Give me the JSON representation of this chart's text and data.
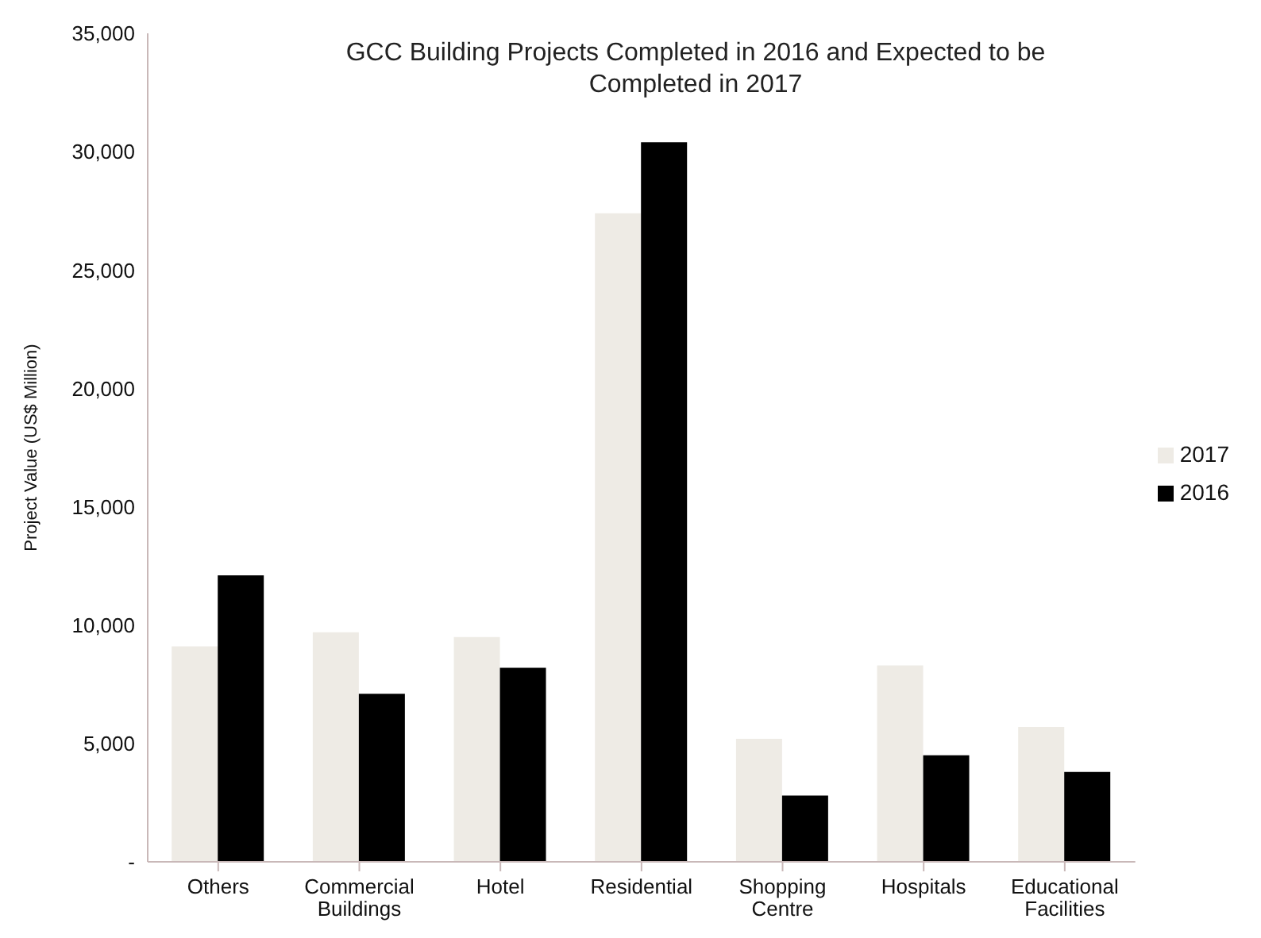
{
  "chart_data": {
    "type": "bar",
    "title": "GCC Building Projects Completed in 2016 and Expected to be Completed in 2017",
    "ylabel": "Project Value (US$ Million)",
    "categories": [
      "Others",
      "Commercial Buildings",
      "Hotel",
      "Residential",
      "Shopping Centre",
      "Hospitals",
      "Educational Facilities"
    ],
    "series": [
      {
        "name": "2017",
        "color": "#eeebe5",
        "values": [
          9100,
          9700,
          9500,
          27400,
          5200,
          8300,
          5700
        ]
      },
      {
        "name": "2016",
        "color": "#000000",
        "values": [
          12100,
          7100,
          8200,
          30400,
          2800,
          4500,
          3800
        ]
      }
    ],
    "ylim": [
      0,
      35000
    ],
    "yticks": [
      {
        "value": 0,
        "label": "-"
      },
      {
        "value": 5000,
        "label": "5,000"
      },
      {
        "value": 10000,
        "label": "10,000"
      },
      {
        "value": 15000,
        "label": "15,000"
      },
      {
        "value": 20000,
        "label": "20,000"
      },
      {
        "value": 25000,
        "label": "25,000"
      },
      {
        "value": 30000,
        "label": "30,000"
      },
      {
        "value": 35000,
        "label": "35,000"
      }
    ],
    "grid": false,
    "legend": "right"
  }
}
